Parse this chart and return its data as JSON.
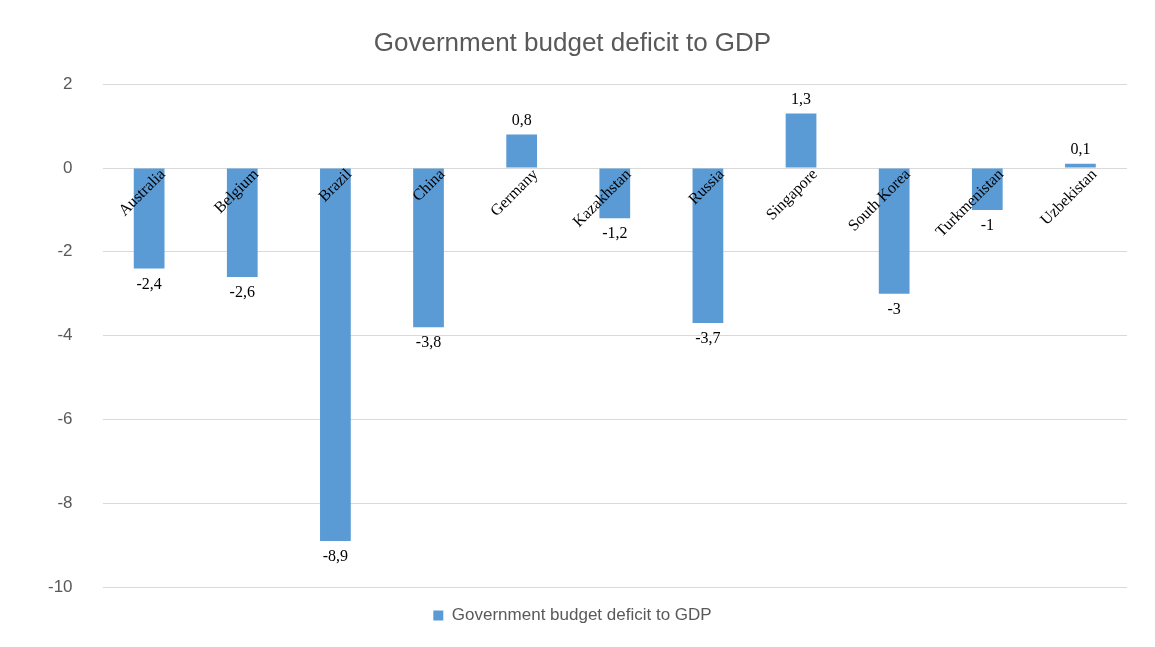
{
  "chart_data": {
    "type": "bar",
    "title": "Government budget deficit to GDP",
    "categories": [
      "Australia",
      "Belgium",
      "Brazil",
      "China",
      "Germany",
      "Kazakhstan",
      "Russia",
      "Singapore",
      "South Korea",
      "Turkmenistan",
      "Uzbekistan"
    ],
    "series": [
      {
        "name": "Government budget deficit to GDP",
        "color": "#5b9bd5",
        "values": [
          -2.4,
          -2.6,
          -8.9,
          -3.8,
          0.8,
          -1.2,
          -3.7,
          1.3,
          -3,
          -1,
          0.1
        ],
        "value_labels": [
          "-2,4",
          "-2,6",
          "-8,9",
          "-3,8",
          "0,8",
          "-1,2",
          "-3,7",
          "1,3",
          "-3",
          "-1",
          "0,1"
        ]
      }
    ],
    "ylim": [
      -10,
      2
    ],
    "yticks": [
      -10,
      -8,
      -6,
      -4,
      -2,
      0,
      2
    ],
    "grid": "y",
    "legend": "bottom"
  }
}
